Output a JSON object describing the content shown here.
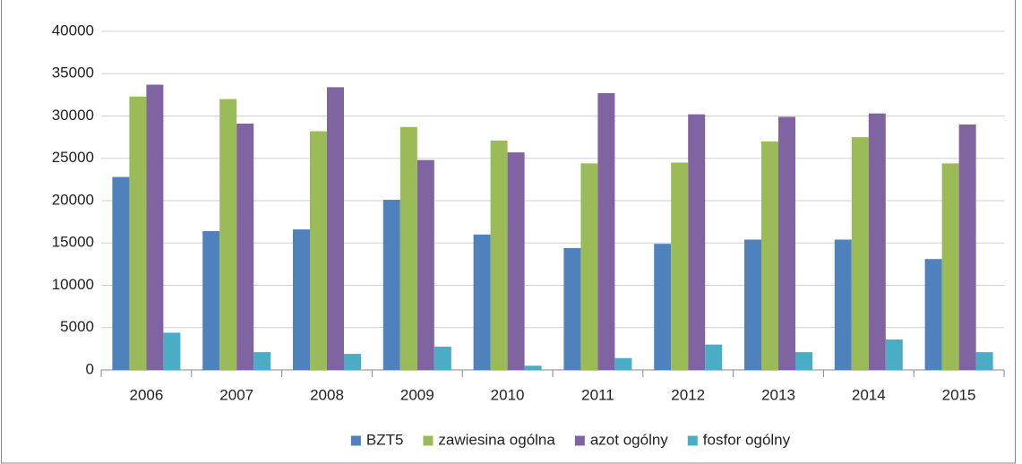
{
  "chart_data": {
    "type": "bar",
    "categories": [
      "2006",
      "2007",
      "2008",
      "2009",
      "2010",
      "2011",
      "2012",
      "2013",
      "2014",
      "2015"
    ],
    "series": [
      {
        "name": "BZT5",
        "color": "#4f81bd",
        "values": [
          22800,
          16400,
          16600,
          20100,
          16000,
          14400,
          14900,
          15400,
          15400,
          13100
        ]
      },
      {
        "name": "zawiesina ogólna",
        "color": "#9bbb59",
        "values": [
          32300,
          32000,
          28200,
          28700,
          27100,
          24400,
          24500,
          27000,
          27500,
          24400
        ]
      },
      {
        "name": "azot ogólny",
        "color": "#8064a2",
        "values": [
          33700,
          29100,
          33400,
          24800,
          25700,
          32700,
          30200,
          29900,
          30300,
          29000
        ]
      },
      {
        "name": "fosfor ogólny",
        "color": "#4bacc6",
        "values": [
          4400,
          2100,
          1900,
          2750,
          500,
          1400,
          3000,
          2100,
          3600,
          2100
        ]
      }
    ],
    "ylim": [
      0,
      40000
    ],
    "yticks": [
      0,
      5000,
      10000,
      15000,
      20000,
      25000,
      30000,
      35000,
      40000
    ],
    "grid": true,
    "legend": "bottom"
  }
}
